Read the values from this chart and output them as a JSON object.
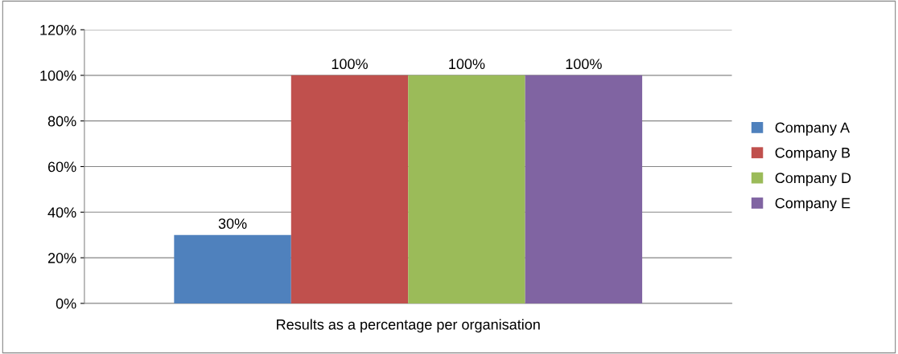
{
  "chart_data": {
    "type": "bar",
    "categories": [
      "Results as a percentage per organisation"
    ],
    "series": [
      {
        "name": "Company A",
        "color": "#4f81bd",
        "values": [
          30
        ],
        "value_labels": [
          "30%"
        ]
      },
      {
        "name": "Company B",
        "color": "#c0504d",
        "values": [
          100
        ],
        "value_labels": [
          "100%"
        ]
      },
      {
        "name": "Company D",
        "color": "#9bbb59",
        "values": [
          100
        ],
        "value_labels": [
          "100%"
        ]
      },
      {
        "name": "Company E",
        "color": "#8064a2",
        "values": [
          100
        ],
        "value_labels": [
          "100%"
        ]
      }
    ],
    "ylim": [
      0,
      120
    ],
    "yticks": [
      {
        "value": 0,
        "label": "0%"
      },
      {
        "value": 20,
        "label": "20%"
      },
      {
        "value": 40,
        "label": "40%"
      },
      {
        "value": 60,
        "label": "60%"
      },
      {
        "value": 80,
        "label": "80%"
      },
      {
        "value": 100,
        "label": "100%"
      },
      {
        "value": 120,
        "label": "120%"
      }
    ],
    "grid": "y",
    "legend": "right"
  }
}
